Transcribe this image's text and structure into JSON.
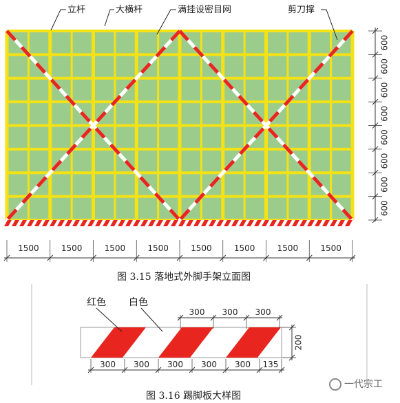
{
  "fig1": {
    "labels": {
      "upright": "立杆",
      "ledger": "大横杆",
      "netting": "满挂设密目网",
      "bracing": "剪刀撑"
    },
    "vertical_spacings": [
      "600",
      "600",
      "600",
      "600",
      "600",
      "600",
      "600",
      "600"
    ],
    "horizontal_spacings": [
      "1500",
      "1500",
      "1500",
      "1500",
      "1500",
      "1500",
      "1500",
      "1500"
    ],
    "caption": "图 3.15 落地式外脚手架立面图"
  },
  "fig2": {
    "labels": {
      "red": "红色",
      "white": "白色"
    },
    "top_dims": [
      "300",
      "300",
      "300"
    ],
    "bottom_dims": [
      "300",
      "300",
      "300",
      "300",
      "300"
    ],
    "last_dim": "135",
    "height_dim": "200",
    "caption": "图 3.16 踢脚板大样图"
  },
  "watermark": "一代宗工",
  "colors": {
    "frame": "#f5e214",
    "mesh": "#9ccc8c",
    "red": "#e8251f",
    "white": "#ffffff",
    "dim": "#333333"
  }
}
